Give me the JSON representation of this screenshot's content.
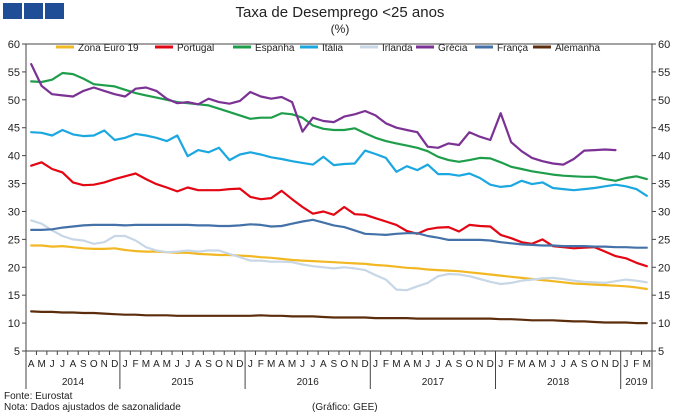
{
  "title": "Taxa de Desemprego <25 anos",
  "subtitle": "(%)",
  "footer": {
    "source": "Fonte: Eurostat",
    "note": "Nota: Dados ajustados de sazonalidade",
    "credit": "(Gráfico: GEE)"
  },
  "chart_data": {
    "type": "line",
    "ylim": [
      5,
      60
    ],
    "yticks": [
      5,
      10,
      15,
      20,
      25,
      30,
      35,
      40,
      45,
      50,
      55,
      60
    ],
    "grid": false,
    "legend_position": "top",
    "months": [
      "A",
      "M",
      "J",
      "J",
      "A",
      "S",
      "O",
      "N",
      "D",
      "J",
      "F",
      "M",
      "A",
      "M",
      "J",
      "J",
      "A",
      "S",
      "O",
      "N",
      "D",
      "J",
      "F",
      "M",
      "A",
      "M",
      "J",
      "J",
      "A",
      "S",
      "O",
      "N",
      "D",
      "J",
      "F",
      "M",
      "A",
      "M",
      "J",
      "J",
      "A",
      "S",
      "O",
      "N",
      "D",
      "J",
      "F",
      "M",
      "A",
      "M",
      "J",
      "J",
      "A",
      "S",
      "O",
      "N",
      "D",
      "J",
      "F",
      "M"
    ],
    "years": [
      {
        "label": "2014",
        "start": 0,
        "end": 9
      },
      {
        "label": "2015",
        "start": 9,
        "end": 21
      },
      {
        "label": "2016",
        "start": 21,
        "end": 33
      },
      {
        "label": "2017",
        "start": 33,
        "end": 45
      },
      {
        "label": "2018",
        "start": 45,
        "end": 57
      },
      {
        "label": "2019",
        "start": 57,
        "end": 60
      }
    ],
    "series": [
      {
        "name": "Zona Euro 19",
        "color": "#f2b824",
        "values": [
          23.9,
          23.9,
          23.7,
          23.8,
          23.6,
          23.4,
          23.3,
          23.3,
          23.4,
          23.1,
          22.9,
          22.8,
          22.8,
          22.7,
          22.6,
          22.6,
          22.4,
          22.3,
          22.2,
          22.2,
          22.1,
          22.0,
          21.8,
          21.7,
          21.5,
          21.3,
          21.2,
          21.1,
          21.0,
          20.9,
          20.8,
          20.7,
          20.6,
          20.4,
          20.3,
          20.1,
          19.9,
          19.8,
          19.6,
          19.5,
          19.4,
          19.3,
          19.1,
          18.9,
          18.7,
          18.5,
          18.3,
          18.1,
          17.9,
          17.7,
          17.5,
          17.3,
          17.1,
          17.0,
          16.9,
          16.8,
          16.7,
          16.6,
          16.4,
          16.1
        ]
      },
      {
        "name": "Portugal",
        "color": "#e30613",
        "values": [
          38.2,
          38.8,
          37.6,
          37.0,
          35.2,
          34.7,
          34.8,
          35.2,
          35.8,
          36.3,
          36.8,
          35.8,
          34.9,
          34.3,
          33.6,
          34.3,
          33.8,
          33.8,
          33.8,
          34.0,
          34.1,
          32.6,
          32.2,
          32.4,
          33.7,
          32.2,
          30.8,
          29.6,
          30.0,
          29.4,
          30.8,
          29.5,
          29.4,
          28.8,
          28.2,
          27.6,
          26.5,
          26.0,
          26.8,
          27.1,
          27.2,
          26.4,
          27.6,
          27.4,
          27.3,
          25.8,
          25.2,
          24.5,
          24.2,
          25.0,
          23.8,
          23.6,
          23.4,
          23.5,
          23.6,
          22.8,
          22.0,
          21.6,
          20.8,
          20.2
        ]
      },
      {
        "name": "Espanha",
        "color": "#1e9e4a",
        "values": [
          53.3,
          53.2,
          53.6,
          54.8,
          54.6,
          53.8,
          52.8,
          52.6,
          52.4,
          51.8,
          51.2,
          50.8,
          50.4,
          50.0,
          49.6,
          49.4,
          49.2,
          49.0,
          48.4,
          47.8,
          47.2,
          46.6,
          46.8,
          46.8,
          47.6,
          47.4,
          46.8,
          45.4,
          44.8,
          44.6,
          44.6,
          44.9,
          44.0,
          43.2,
          42.6,
          42.2,
          41.8,
          41.4,
          40.8,
          39.8,
          39.2,
          38.9,
          39.2,
          39.6,
          39.5,
          38.8,
          38.0,
          37.6,
          37.2,
          36.9,
          36.6,
          36.4,
          36.3,
          36.2,
          36.2,
          35.8,
          35.5,
          36.0,
          36.3,
          35.8
        ]
      },
      {
        "name": "Itália",
        "color": "#1ba7e0",
        "values": [
          44.2,
          44.1,
          43.6,
          44.6,
          43.8,
          43.5,
          43.6,
          44.5,
          42.8,
          43.2,
          43.9,
          43.6,
          43.2,
          42.6,
          43.6,
          39.9,
          41.0,
          40.6,
          41.4,
          39.2,
          40.2,
          40.6,
          40.2,
          39.7,
          39.4,
          39.0,
          38.7,
          38.4,
          39.8,
          38.3,
          38.5,
          38.6,
          40.9,
          40.3,
          39.6,
          37.1,
          38.1,
          37.4,
          38.4,
          36.7,
          36.7,
          36.4,
          36.8,
          36.0,
          34.8,
          34.4,
          34.6,
          35.5,
          34.9,
          35.2,
          34.2,
          34.0,
          33.8,
          34.0,
          34.2,
          34.5,
          34.8,
          34.5,
          34.0,
          32.8
        ]
      },
      {
        "name": "Irlanda",
        "color": "#c8d7e6",
        "values": [
          28.4,
          27.8,
          26.6,
          25.6,
          25.0,
          24.8,
          24.2,
          24.5,
          25.6,
          25.6,
          24.8,
          23.6,
          23.0,
          22.7,
          22.8,
          23.0,
          22.8,
          23.0,
          23.0,
          22.4,
          21.8,
          21.2,
          21.2,
          21.0,
          21.0,
          20.9,
          20.5,
          20.2,
          20.0,
          19.8,
          20.0,
          19.8,
          19.5,
          18.6,
          17.8,
          16.0,
          15.9,
          16.6,
          17.2,
          18.4,
          18.8,
          18.7,
          18.4,
          17.9,
          17.4,
          17.0,
          17.2,
          17.6,
          17.8,
          18.0,
          18.1,
          17.9,
          17.6,
          17.4,
          17.3,
          17.2,
          17.5,
          17.8,
          17.6,
          17.3
        ]
      },
      {
        "name": "Grécia",
        "color": "#7b3294",
        "values": [
          56.4,
          52.5,
          51.0,
          50.8,
          50.6,
          51.6,
          52.2,
          51.6,
          51.0,
          50.6,
          52.0,
          52.2,
          51.6,
          50.2,
          49.4,
          49.6,
          49.2,
          50.2,
          49.6,
          49.3,
          49.8,
          51.4,
          50.6,
          50.2,
          50.5,
          49.6,
          44.3,
          46.8,
          46.2,
          46.0,
          47.0,
          47.4,
          48.0,
          47.2,
          45.8,
          45.0,
          44.6,
          44.2,
          41.6,
          41.4,
          42.2,
          41.9,
          44.2,
          43.4,
          42.8,
          47.6,
          42.4,
          40.8,
          39.6,
          39.0,
          38.6,
          38.4,
          39.4,
          40.9,
          41.0,
          41.1,
          41.0,
          null,
          null,
          null
        ]
      },
      {
        "name": "França",
        "color": "#4472a8",
        "values": [
          26.7,
          26.7,
          26.8,
          27.1,
          27.3,
          27.5,
          27.6,
          27.6,
          27.6,
          27.5,
          27.6,
          27.6,
          27.6,
          27.6,
          27.6,
          27.6,
          27.5,
          27.5,
          27.4,
          27.4,
          27.5,
          27.7,
          27.6,
          27.3,
          27.4,
          27.8,
          28.2,
          28.5,
          28.0,
          27.5,
          27.2,
          26.6,
          26.0,
          25.9,
          25.8,
          26.0,
          26.1,
          26.1,
          25.6,
          25.3,
          24.9,
          24.9,
          24.9,
          24.9,
          24.8,
          24.5,
          24.3,
          24.1,
          24.0,
          23.9,
          23.9,
          23.8,
          23.8,
          23.8,
          23.7,
          23.7,
          23.6,
          23.6,
          23.5,
          23.5
        ]
      },
      {
        "name": "Alemanha",
        "color": "#5c2d0c",
        "values": [
          12.1,
          12.0,
          12.0,
          11.9,
          11.9,
          11.8,
          11.8,
          11.7,
          11.6,
          11.5,
          11.5,
          11.4,
          11.4,
          11.4,
          11.3,
          11.3,
          11.3,
          11.3,
          11.3,
          11.3,
          11.3,
          11.3,
          11.4,
          11.3,
          11.3,
          11.2,
          11.2,
          11.2,
          11.1,
          11.0,
          11.0,
          11.0,
          11.0,
          10.9,
          10.9,
          10.9,
          10.9,
          10.8,
          10.8,
          10.8,
          10.8,
          10.8,
          10.8,
          10.8,
          10.8,
          10.7,
          10.7,
          10.6,
          10.5,
          10.5,
          10.5,
          10.4,
          10.3,
          10.3,
          10.2,
          10.1,
          10.1,
          10.1,
          10.0,
          10.0
        ]
      }
    ]
  }
}
